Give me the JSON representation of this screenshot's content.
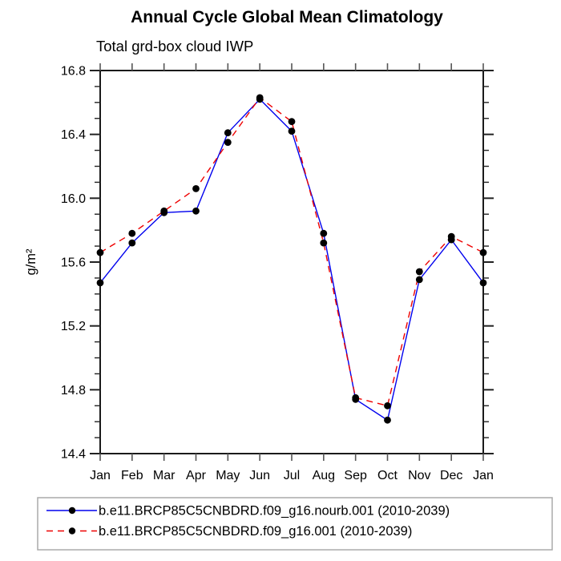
{
  "title": "Annual Cycle Global Mean Climatology",
  "subtitle": "Total grd-box cloud IWP",
  "chart_data": {
    "type": "line",
    "categories": [
      "Jan",
      "Feb",
      "Mar",
      "Apr",
      "May",
      "Jun",
      "Jul",
      "Aug",
      "Sep",
      "Oct",
      "Nov",
      "Dec",
      "Jan"
    ],
    "xlabel": "",
    "ylabel": "g/m²",
    "ylim": [
      14.4,
      16.8
    ],
    "ytick_major_step": 0.4,
    "ytick_minor_step": 0.1,
    "ytick_labels": [
      "14.4",
      "14.8",
      "15.2",
      "15.6",
      "16.0",
      "16.4",
      "16.8"
    ],
    "grid": false,
    "legend_position": "bottom",
    "marker": "filled-circle",
    "marker_color": "#000000",
    "legend_border_color": "#aaaaaa",
    "series": [
      {
        "name": "b.e11.BRCP85C5CNBDRD.f09_g16.nourb.001 (2010-2039)",
        "color": "#0000ee",
        "style": "solid",
        "values": [
          15.47,
          15.72,
          15.91,
          15.92,
          16.41,
          16.62,
          16.42,
          15.78,
          14.74,
          14.61,
          15.49,
          15.74,
          15.47
        ]
      },
      {
        "name": "b.e11.BRCP85C5CNBDRD.f09_g16.001 (2010-2039)",
        "color": "#ee0000",
        "style": "dashed",
        "values": [
          15.66,
          15.78,
          15.92,
          16.06,
          16.35,
          16.63,
          16.48,
          15.72,
          14.75,
          14.7,
          15.54,
          15.76,
          15.66
        ]
      }
    ]
  }
}
